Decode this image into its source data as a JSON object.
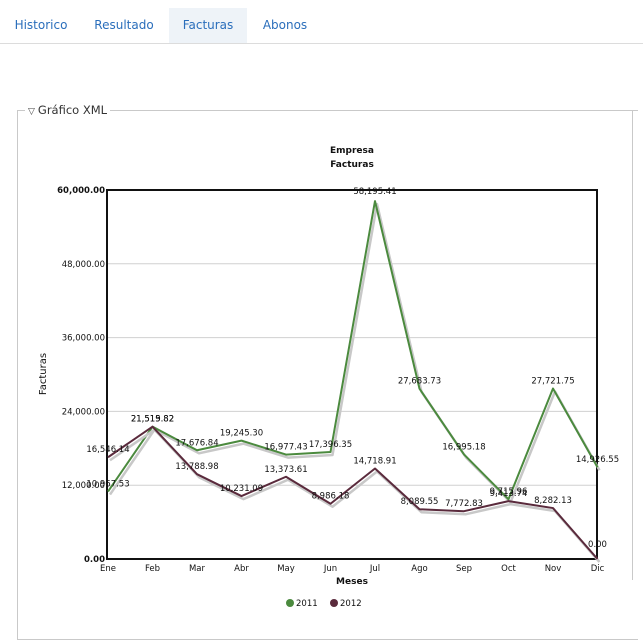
{
  "tabs": [
    {
      "label": "Historico",
      "active": false
    },
    {
      "label": "Resultado",
      "active": false
    },
    {
      "label": "Facturas",
      "active": true
    },
    {
      "label": "Abonos",
      "active": false
    }
  ],
  "panel": {
    "legend": "Gráfico XML",
    "collapse_icon": "triangle-down-icon"
  },
  "chart_data": {
    "type": "line",
    "title": "Empresa",
    "subtitle": "Facturas",
    "xlabel": "Meses",
    "ylabel": "Facturas",
    "ylim": [
      0,
      60000
    ],
    "yticks": [
      "0.00",
      "12,000.00",
      "24,000.00",
      "36,000.00",
      "48,000.00",
      "60,000.00"
    ],
    "grid": true,
    "legend_position": "bottom",
    "categories": [
      "Ene",
      "Feb",
      "Mar",
      "Abr",
      "May",
      "Jun",
      "Jul",
      "Ago",
      "Sep",
      "Oct",
      "Nov",
      "Dic"
    ],
    "series": [
      {
        "name": "2011",
        "color": "#4b8a3e",
        "values": [
          10967.53,
          21519.82,
          17676.84,
          19245.3,
          16977.43,
          17396.35,
          58195.41,
          27683.73,
          16995.18,
          9715.96,
          27721.75,
          14926.55
        ],
        "labels": [
          "10,967.53",
          "21,519.82",
          "17,676.84",
          "19,245.30",
          "16,977.43",
          "17,396.35",
          "58,195.41",
          "27,683.73",
          "16,995.18",
          "9,715.96",
          "27,721.75",
          "14,926.55"
        ]
      },
      {
        "name": "2012",
        "color": "#5a2a3c",
        "values": [
          16546.14,
          21515.82,
          13788.98,
          10231.09,
          13373.61,
          8986.18,
          14718.91,
          8089.55,
          7772.83,
          9413.74,
          8282.13,
          0
        ],
        "labels": [
          "16,546.14",
          "21,515.82",
          "13,788.98",
          "10,231.09",
          "13,373.61",
          "8,986.18",
          "14,718.91",
          "8,089.55",
          "7,772.83",
          "9,413.74",
          "8,282.13",
          "0.00"
        ]
      }
    ]
  }
}
